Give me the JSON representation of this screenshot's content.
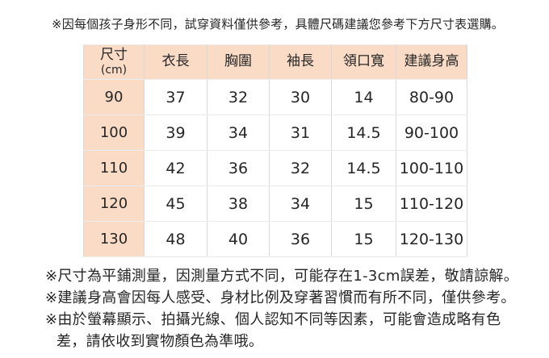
{
  "top_note": "※因每個孩子身形不同，試穿資料僅供參考，具體尺碼建議您參考下方尺寸表選購。",
  "table": {
    "headers": {
      "size": "尺寸",
      "size_unit": "(cm)",
      "length": "衣長",
      "chest": "胸圍",
      "sleeve": "袖長",
      "neck": "領口寬",
      "height": "建議身高"
    },
    "rows": [
      {
        "size": "90",
        "length": "37",
        "chest": "32",
        "sleeve": "30",
        "neck": "14",
        "height": "80-90"
      },
      {
        "size": "100",
        "length": "39",
        "chest": "34",
        "sleeve": "31",
        "neck": "14.5",
        "height": "90-100"
      },
      {
        "size": "110",
        "length": "42",
        "chest": "36",
        "sleeve": "32",
        "neck": "14.5",
        "height": "100-110"
      },
      {
        "size": "120",
        "length": "45",
        "chest": "38",
        "sleeve": "34",
        "neck": "15",
        "height": "110-120"
      },
      {
        "size": "130",
        "length": "48",
        "chest": "40",
        "sleeve": "36",
        "neck": "15",
        "height": "120-130"
      }
    ]
  },
  "notes": {
    "note1": "※尺寸為平鋪測量，因測量方式不同，可能存在1-3cm誤差，敬請諒解。",
    "note2": "※建議身高會因每人感受、身材比例及穿著習慣而有所不同，僅供參考。",
    "note3_line1": "※由於螢幕顯示、拍攝光線、個人認知不同等因素，可能會造成略有色",
    "note3_line2": "差，請依收到實物顏色為準哦。"
  },
  "colors": {
    "header_bg": "#fadcc6",
    "border_v": "#d9d9d9",
    "border_h": "#ececec",
    "text": "#262626",
    "page_bg": "#ffffff"
  }
}
